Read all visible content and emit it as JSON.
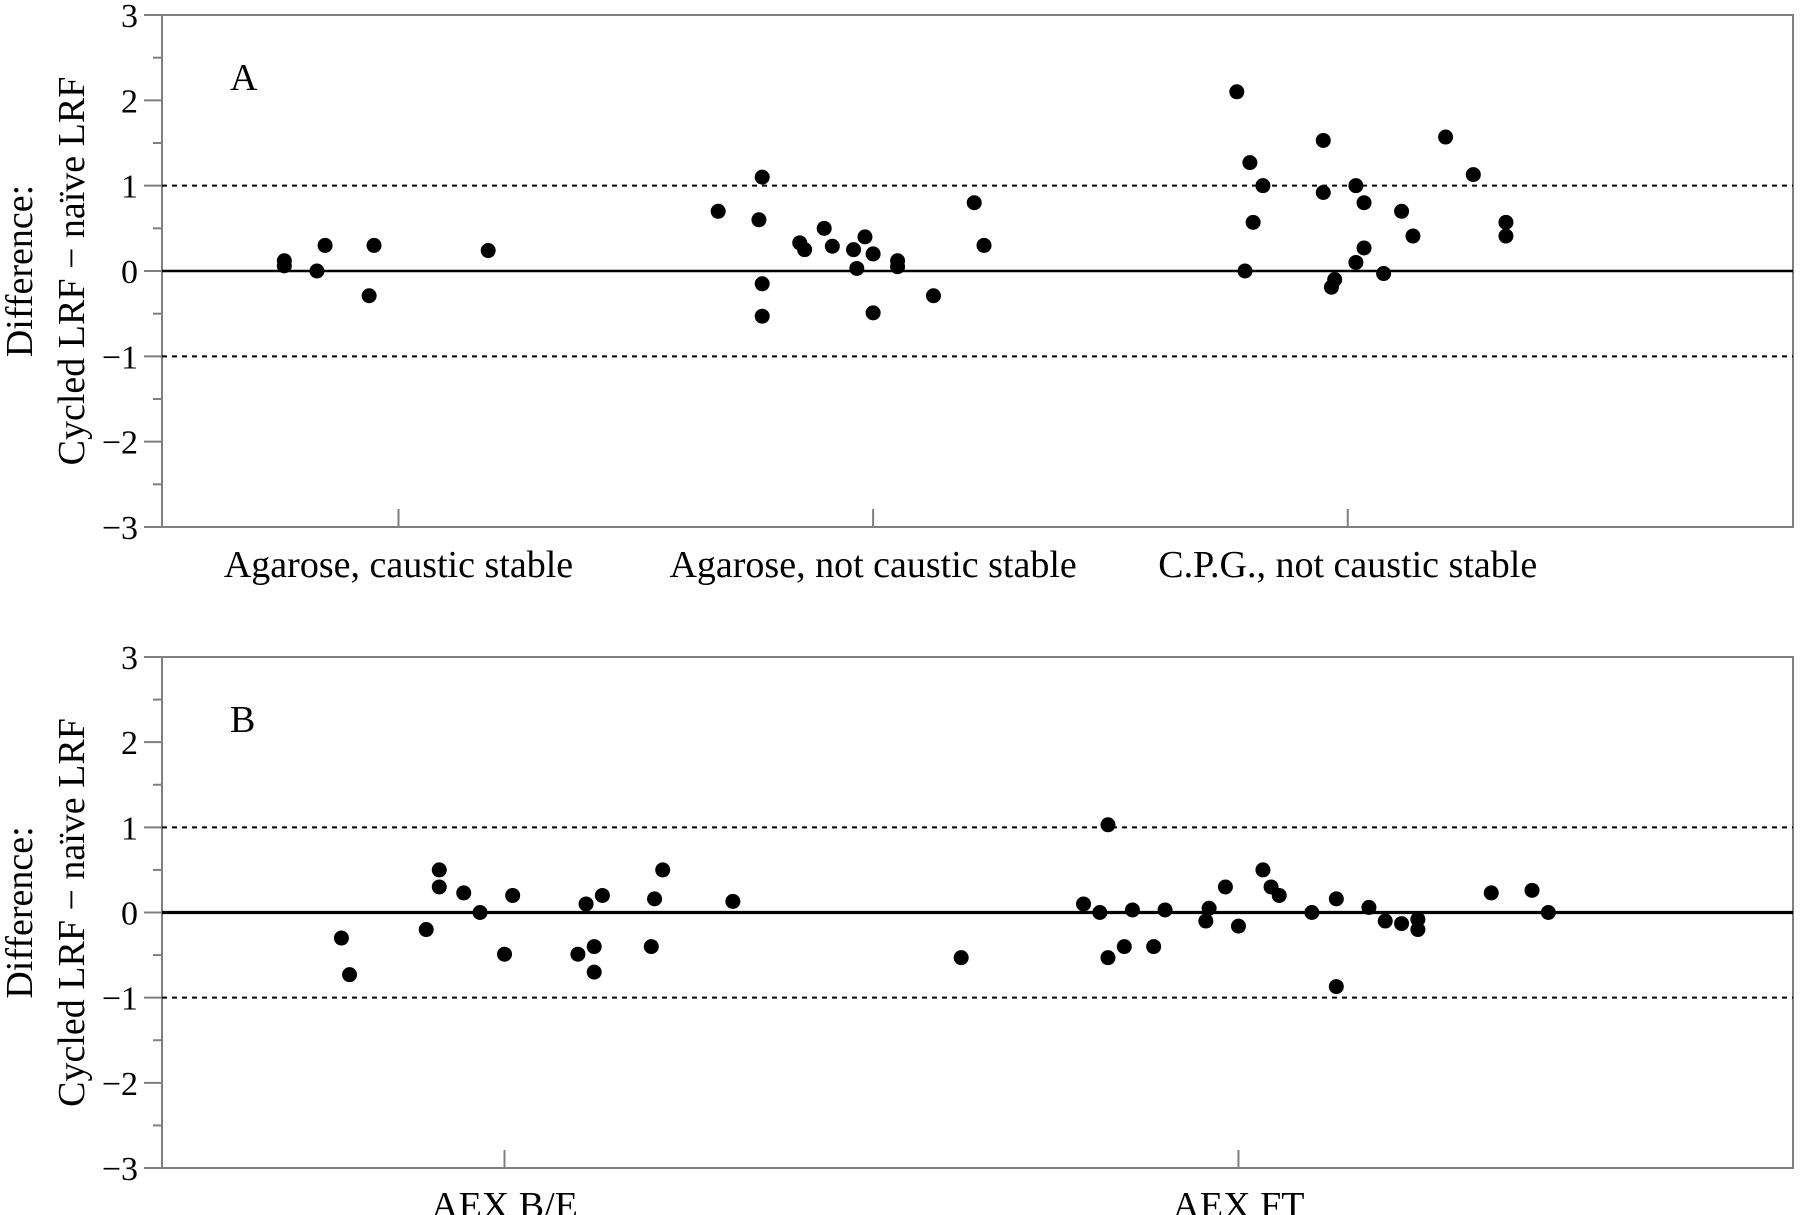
{
  "chart_data": [
    {
      "type": "scatter",
      "panel_label": "A",
      "ylabel_line1": "Difference:",
      "ylabel_line2": "Cycled LRF − naïve LRF",
      "xlabel": "",
      "ylim": [
        -3,
        3
      ],
      "yticks": [
        -3,
        -2,
        -1,
        0,
        1,
        2,
        3
      ],
      "ytick_labels": [
        "−3",
        "−2",
        "−1",
        "0",
        "1",
        "2",
        "3"
      ],
      "categories": [
        "Agarose, caustic stable",
        "Agarose, not caustic stable",
        "C.P.G., not caustic stable"
      ],
      "reference_lines": [
        {
          "y": 0,
          "style": "solid"
        },
        {
          "y": 1,
          "style": "dotted"
        },
        {
          "y": -1,
          "style": "dotted"
        }
      ],
      "grid": false,
      "points": [
        {
          "category": 0,
          "offset": -0.07,
          "y": 0.12
        },
        {
          "category": 0,
          "offset": -0.07,
          "y": 0.06
        },
        {
          "category": 0,
          "offset": -0.05,
          "y": 0.0
        },
        {
          "category": 0,
          "offset": -0.045,
          "y": 0.3
        },
        {
          "category": 0,
          "offset": -0.015,
          "y": 0.3
        },
        {
          "category": 0,
          "offset": -0.018,
          "y": -0.29
        },
        {
          "category": 0,
          "offset": 0.055,
          "y": 0.24
        },
        {
          "category": 1,
          "offset": -0.095,
          "y": 0.7
        },
        {
          "category": 1,
          "offset": -0.07,
          "y": 0.6
        },
        {
          "category": 1,
          "offset": -0.068,
          "y": 1.1
        },
        {
          "category": 1,
          "offset": -0.045,
          "y": 0.33
        },
        {
          "category": 1,
          "offset": -0.042,
          "y": 0.25
        },
        {
          "category": 1,
          "offset": -0.03,
          "y": 0.5
        },
        {
          "category": 1,
          "offset": -0.025,
          "y": 0.29
        },
        {
          "category": 1,
          "offset": -0.012,
          "y": 0.25
        },
        {
          "category": 1,
          "offset": -0.005,
          "y": 0.4
        },
        {
          "category": 1,
          "offset": 0.0,
          "y": 0.2
        },
        {
          "category": 1,
          "offset": -0.01,
          "y": 0.03
        },
        {
          "category": 1,
          "offset": 0.015,
          "y": 0.05
        },
        {
          "category": 1,
          "offset": 0.015,
          "y": 0.12
        },
        {
          "category": 1,
          "offset": -0.068,
          "y": -0.15
        },
        {
          "category": 1,
          "offset": -0.068,
          "y": -0.53
        },
        {
          "category": 1,
          "offset": 0.0,
          "y": -0.49
        },
        {
          "category": 1,
          "offset": 0.037,
          "y": -0.29
        },
        {
          "category": 1,
          "offset": 0.062,
          "y": 0.8
        },
        {
          "category": 1,
          "offset": 0.068,
          "y": 0.3
        },
        {
          "category": 2,
          "offset": -0.068,
          "y": 2.1
        },
        {
          "category": 2,
          "offset": -0.06,
          "y": 1.27
        },
        {
          "category": 2,
          "offset": -0.052,
          "y": 1.0
        },
        {
          "category": 2,
          "offset": -0.058,
          "y": 0.57
        },
        {
          "category": 2,
          "offset": -0.063,
          "y": 0.0
        },
        {
          "category": 2,
          "offset": -0.015,
          "y": 1.53
        },
        {
          "category": 2,
          "offset": -0.015,
          "y": 0.92
        },
        {
          "category": 2,
          "offset": 0.005,
          "y": 1.0
        },
        {
          "category": 2,
          "offset": 0.01,
          "y": 0.8
        },
        {
          "category": 2,
          "offset": 0.033,
          "y": 0.7
        },
        {
          "category": 2,
          "offset": 0.04,
          "y": 0.41
        },
        {
          "category": 2,
          "offset": 0.01,
          "y": 0.27
        },
        {
          "category": 2,
          "offset": 0.005,
          "y": 0.1
        },
        {
          "category": 2,
          "offset": -0.008,
          "y": -0.1
        },
        {
          "category": 2,
          "offset": -0.01,
          "y": -0.19
        },
        {
          "category": 2,
          "offset": 0.022,
          "y": -0.03
        },
        {
          "category": 2,
          "offset": 0.06,
          "y": 1.57
        },
        {
          "category": 2,
          "offset": 0.077,
          "y": 1.13
        },
        {
          "category": 2,
          "offset": 0.097,
          "y": 0.57
        },
        {
          "category": 2,
          "offset": 0.097,
          "y": 0.41
        }
      ]
    },
    {
      "type": "scatter",
      "panel_label": "B",
      "ylabel_line1": "Difference:",
      "ylabel_line2": "Cycled LRF − naïve LRF",
      "xlabel": "",
      "ylim": [
        -3,
        3
      ],
      "yticks": [
        -3,
        -2,
        -1,
        0,
        1,
        2,
        3
      ],
      "ytick_labels": [
        "−3",
        "−2",
        "−1",
        "0",
        "1",
        "2",
        "3"
      ],
      "categories": [
        "AEX B/E",
        "AEX FT"
      ],
      "reference_lines": [
        {
          "y": 0,
          "style": "solid"
        },
        {
          "y": 1,
          "style": "dotted"
        },
        {
          "y": -1,
          "style": "dotted"
        }
      ],
      "grid": false,
      "points": [
        {
          "category": 0,
          "offset": -0.1,
          "y": -0.3
        },
        {
          "category": 0,
          "offset": -0.095,
          "y": -0.73
        },
        {
          "category": 0,
          "offset": -0.048,
          "y": -0.2
        },
        {
          "category": 0,
          "offset": -0.04,
          "y": 0.3
        },
        {
          "category": 0,
          "offset": -0.04,
          "y": 0.5
        },
        {
          "category": 0,
          "offset": -0.025,
          "y": 0.23
        },
        {
          "category": 0,
          "offset": -0.015,
          "y": 0.0
        },
        {
          "category": 0,
          "offset": 0.005,
          "y": 0.2
        },
        {
          "category": 0,
          "offset": 0.0,
          "y": -0.49
        },
        {
          "category": 0,
          "offset": 0.045,
          "y": -0.49
        },
        {
          "category": 0,
          "offset": 0.055,
          "y": -0.4
        },
        {
          "category": 0,
          "offset": 0.055,
          "y": -0.7
        },
        {
          "category": 0,
          "offset": 0.05,
          "y": 0.1
        },
        {
          "category": 0,
          "offset": 0.06,
          "y": 0.2
        },
        {
          "category": 0,
          "offset": 0.09,
          "y": -0.4
        },
        {
          "category": 0,
          "offset": 0.092,
          "y": 0.16
        },
        {
          "category": 0,
          "offset": 0.097,
          "y": 0.5
        },
        {
          "category": 0,
          "offset": 0.14,
          "y": 0.13
        },
        {
          "category": 1,
          "offset": -0.17,
          "y": -0.53
        },
        {
          "category": 1,
          "offset": -0.095,
          "y": 0.1
        },
        {
          "category": 1,
          "offset": -0.085,
          "y": 0.0
        },
        {
          "category": 1,
          "offset": -0.08,
          "y": -0.53
        },
        {
          "category": 1,
          "offset": -0.07,
          "y": -0.4
        },
        {
          "category": 1,
          "offset": -0.065,
          "y": 0.03
        },
        {
          "category": 1,
          "offset": -0.052,
          "y": -0.4
        },
        {
          "category": 1,
          "offset": -0.045,
          "y": 0.03
        },
        {
          "category": 1,
          "offset": -0.08,
          "y": 1.03
        },
        {
          "category": 1,
          "offset": -0.02,
          "y": -0.1
        },
        {
          "category": 1,
          "offset": -0.018,
          "y": 0.05
        },
        {
          "category": 1,
          "offset": -0.008,
          "y": 0.3
        },
        {
          "category": 1,
          "offset": 0.0,
          "y": -0.16
        },
        {
          "category": 1,
          "offset": 0.015,
          "y": 0.5
        },
        {
          "category": 1,
          "offset": 0.02,
          "y": 0.3
        },
        {
          "category": 1,
          "offset": 0.025,
          "y": 0.2
        },
        {
          "category": 1,
          "offset": 0.045,
          "y": 0.0
        },
        {
          "category": 1,
          "offset": 0.06,
          "y": 0.16
        },
        {
          "category": 1,
          "offset": 0.06,
          "y": -0.87
        },
        {
          "category": 1,
          "offset": 0.08,
          "y": 0.06
        },
        {
          "category": 1,
          "offset": 0.09,
          "y": -0.1
        },
        {
          "category": 1,
          "offset": 0.1,
          "y": -0.13
        },
        {
          "category": 1,
          "offset": 0.11,
          "y": -0.2
        },
        {
          "category": 1,
          "offset": 0.11,
          "y": -0.08
        },
        {
          "category": 1,
          "offset": 0.155,
          "y": 0.23
        },
        {
          "category": 1,
          "offset": 0.18,
          "y": 0.26
        },
        {
          "category": 1,
          "offset": 0.19,
          "y": 0.0
        }
      ]
    }
  ]
}
